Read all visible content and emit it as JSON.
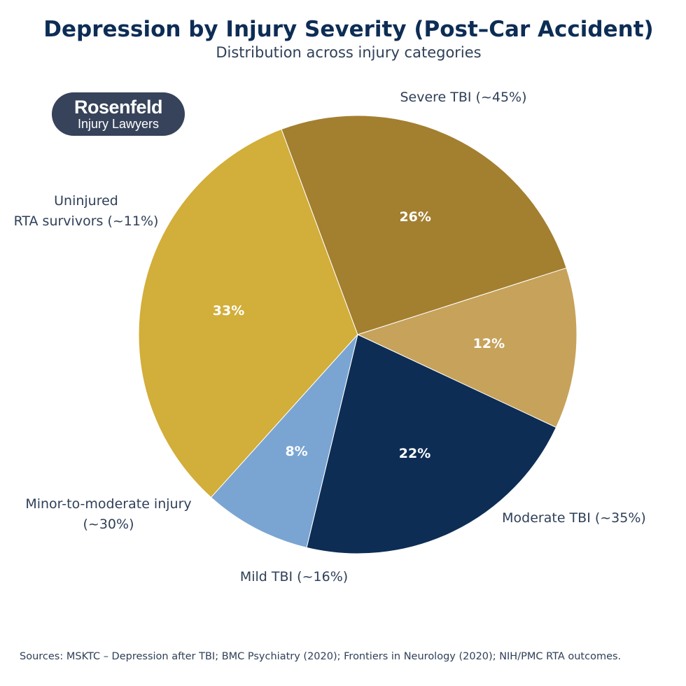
{
  "header": {
    "title": "Depression by Injury Severity (Post–Car Accident)",
    "subtitle": "Distribution across injury categories"
  },
  "logo": {
    "name": "Rosenfeld",
    "tagline": "Injury Lawyers",
    "background": "#36435a"
  },
  "footer": {
    "sources": "Sources: MSKTC – Depression after TBI; BMC Psychiatry (2020); Frontiers in Neurology (2020); NIH/PMC RTA outcomes."
  },
  "chart_data": {
    "type": "pie",
    "title": "Depression by Injury Severity (Post–Car Accident)",
    "subtitle": "Distribution across injury categories",
    "slices": [
      {
        "label": "Severe TBI (~45%)",
        "percent_label": "33%",
        "value": 33,
        "color": "#d2ae3a"
      },
      {
        "label": "Moderate TBI (~35%)",
        "percent_label": "26%",
        "value": 26,
        "color": "#a37f30"
      },
      {
        "label": "Mild TBI (~16%)",
        "percent_label": "12%",
        "value": 12,
        "color": "#c6a25b"
      },
      {
        "label": "Minor-to-moderate injury\n(~30%)",
        "percent_label": "22%",
        "value": 22,
        "color": "#0d2d55"
      },
      {
        "label": "Uninjured\nRTA survivors (~11%)",
        "percent_label": "8%",
        "value": 8,
        "color": "#7aa5d2"
      }
    ],
    "legend": "none"
  }
}
